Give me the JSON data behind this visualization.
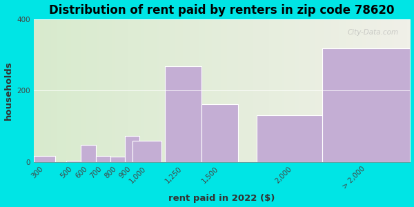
{
  "title": "Distribution of rent paid by renters in zip code 78620",
  "xlabel": "rent paid in 2022 ($)",
  "ylabel": "households",
  "categories": [
    "300",
    "500",
    "600",
    "700",
    "800",
    "900",
    "1,000",
    "1,250",
    "1,500",
    "2,000",
    "> 2,000"
  ],
  "x_values": [
    300,
    500,
    600,
    700,
    800,
    900,
    1000,
    1250,
    1500,
    2000,
    2500
  ],
  "x_widths": [
    150,
    100,
    100,
    100,
    100,
    100,
    200,
    250,
    250,
    500,
    600
  ],
  "values": [
    17,
    3,
    47,
    17,
    14,
    72,
    60,
    268,
    162,
    130,
    318
  ],
  "bar_color": "#c4aed4",
  "bar_edge_color": "#ffffff",
  "ylim": [
    0,
    400
  ],
  "yticks": [
    0,
    200,
    400
  ],
  "bg_outer": "#00e5e5",
  "bg_chart_top_left": "#cce8c0",
  "bg_chart_bottom_right": "#f0f0e8",
  "watermark": "City-Data.com",
  "title_fontsize": 12,
  "axis_label_fontsize": 9.5,
  "tick_fontsize": 7.5
}
